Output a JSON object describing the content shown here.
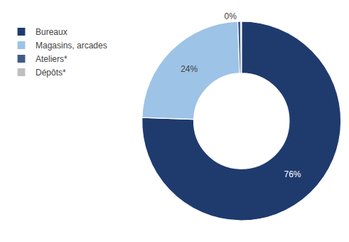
{
  "chart_data": {
    "type": "donut",
    "categories": [
      "Bureaux",
      "Magasins, arcades",
      "Ateliers*",
      "Dépôts*"
    ],
    "values": [
      76,
      24,
      0.5,
      0.1
    ],
    "value_labels": [
      "76%",
      "24%",
      "0%",
      null
    ],
    "colors": [
      "#1F3B6E",
      "#9DC3E6",
      "#3D5A8A",
      "#BFBFBF"
    ],
    "data_labels": true,
    "legend": "upper left"
  }
}
